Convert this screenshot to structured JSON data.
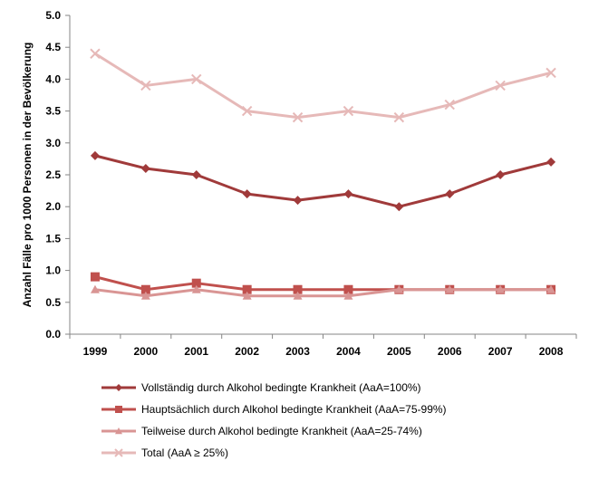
{
  "chart_data": {
    "type": "line",
    "title": "",
    "xlabel": "",
    "ylabel": "Anzahl Fälle pro 1000  Personen in der Bevölkerung",
    "ylim": [
      0,
      5
    ],
    "yticks": [
      "0.0",
      "0.5",
      "1.0",
      "1.5",
      "2.0",
      "2.5",
      "3.0",
      "3.5",
      "4.0",
      "4.5",
      "5.0"
    ],
    "categories": [
      "1999",
      "2000",
      "2001",
      "2002",
      "2003",
      "2004",
      "2005",
      "2006",
      "2007",
      "2008"
    ],
    "grid": false,
    "legend_position": "bottom",
    "series": [
      {
        "name": "Vollständig durch Alkohol bedingte Krankheit (AaA=100%)",
        "values": [
          2.8,
          2.6,
          2.5,
          2.2,
          2.1,
          2.2,
          2.0,
          2.2,
          2.5,
          2.7
        ],
        "color": "#a03a3a",
        "marker": "diamond"
      },
      {
        "name": "Hauptsächlich durch Alkohol bedingte Krankheit (AaA=75-99%)",
        "values": [
          0.9,
          0.7,
          0.8,
          0.7,
          0.7,
          0.7,
          0.7,
          0.7,
          0.7,
          0.7
        ],
        "color": "#c0504d",
        "marker": "square"
      },
      {
        "name": "Teilweise durch Alkohol bedingte Krankheit (AaA=25-74%)",
        "values": [
          0.7,
          0.6,
          0.7,
          0.6,
          0.6,
          0.6,
          0.7,
          0.7,
          0.7,
          0.7
        ],
        "color": "#d99594",
        "marker": "triangle"
      },
      {
        "name": "Total (AaA ≥ 25%)",
        "values": [
          4.4,
          3.9,
          4.0,
          3.5,
          3.4,
          3.5,
          3.4,
          3.6,
          3.9,
          4.1
        ],
        "color": "#e6b9b8",
        "marker": "x"
      }
    ]
  }
}
